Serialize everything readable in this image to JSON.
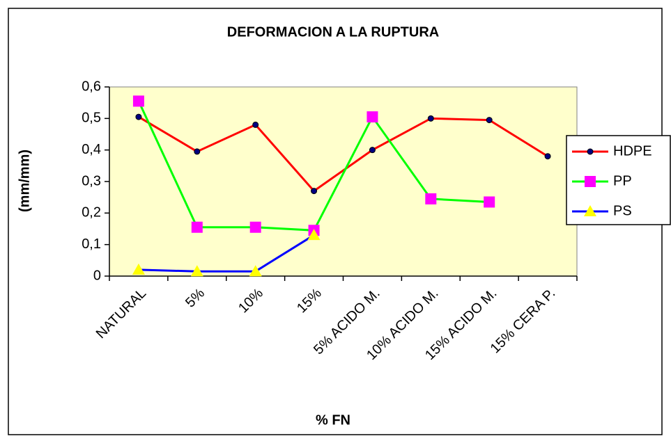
{
  "chart_data": {
    "type": "line",
    "title": "DEFORMACION A LA RUPTURA",
    "x_label": "% FN",
    "y_label": "(mm/mm)",
    "categories": [
      "NATURAL",
      "5%",
      "10%",
      "15%",
      "5% ACIDO M.",
      "10% ACIDO M.",
      "15% ACIDO M.",
      "15% CERA P."
    ],
    "series": [
      {
        "name": "HDPE",
        "color": "#ff0000",
        "marker": "circle",
        "marker_color": "#000080",
        "values": [
          0.505,
          0.395,
          0.48,
          0.27,
          0.4,
          0.5,
          0.495,
          0.38
        ]
      },
      {
        "name": "PP",
        "color": "#00ff00",
        "marker": "square",
        "marker_color": "#ff00ff",
        "values": [
          0.555,
          0.155,
          0.155,
          0.145,
          0.505,
          0.245,
          0.235,
          null
        ]
      },
      {
        "name": "PS",
        "color": "#0000ff",
        "marker": "triangle",
        "marker_color": "#ffff00",
        "values": [
          0.02,
          0.015,
          0.015,
          0.13,
          null,
          null,
          null,
          null
        ]
      }
    ],
    "ylim": [
      0,
      0.6
    ],
    "yticks": [
      0,
      {
        "value": 0.1,
        "label": "0,1"
      },
      {
        "value": 0.2,
        "label": "0,2"
      },
      {
        "value": 0.3,
        "label": "0,3"
      },
      {
        "value": 0.4,
        "label": "0,4"
      },
      {
        "value": 0.5,
        "label": "0,5"
      },
      {
        "value": 0.6,
        "label": "0,6"
      }
    ],
    "plot_background": "#ffffcc",
    "grid": false,
    "legend": "right"
  }
}
